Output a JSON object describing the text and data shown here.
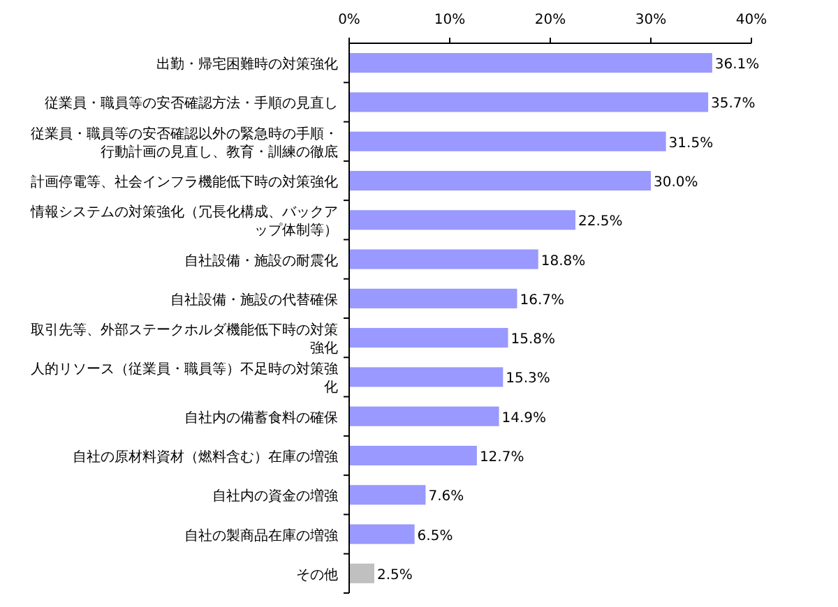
{
  "chart_data": {
    "type": "bar",
    "orientation": "horizontal",
    "categories": [
      "出勤・帰宅困難時の対策強化",
      "従業員・職員等の安否確認方法・手順の見直し",
      "従業員・職員等の安否確認以外の緊急時の手順・行動計画の見直し、教育・訓練の徹底",
      "計画停電等、社会インフラ機能低下時の対策強化",
      "情報システムの対策強化（冗長化構成、バックアップ体制等）",
      "自社設備・施設の耐震化",
      "自社設備・施設の代替確保",
      "取引先等、外部ステークホルダ機能低下時の対策強化",
      "人的リソース（従業員・職員等）不足時の対策強化",
      "自社内の備蓄食料の確保",
      "自社の原材料資材（燃料含む）在庫の増強",
      "自社内の資金の増強",
      "自社の製商品在庫の増強",
      "その他"
    ],
    "values": [
      36.1,
      35.7,
      31.5,
      30.0,
      22.5,
      18.8,
      16.7,
      15.8,
      15.3,
      14.9,
      12.7,
      7.6,
      6.5,
      2.5
    ],
    "value_labels": [
      "36.1%",
      "35.7%",
      "31.5%",
      "30.0%",
      "22.5%",
      "18.8%",
      "16.7%",
      "15.8%",
      "15.3%",
      "14.9%",
      "12.7%",
      "7.6%",
      "6.5%",
      "2.5%"
    ],
    "colors": [
      "#9999ff",
      "#9999ff",
      "#9999ff",
      "#9999ff",
      "#9999ff",
      "#9999ff",
      "#9999ff",
      "#9999ff",
      "#9999ff",
      "#9999ff",
      "#9999ff",
      "#9999ff",
      "#9999ff",
      "#c0c0c0"
    ],
    "xlim": [
      0,
      40
    ],
    "xticks": [
      {
        "value": 0,
        "label": "0%"
      },
      {
        "value": 10,
        "label": "10%"
      },
      {
        "value": 20,
        "label": "20%"
      },
      {
        "value": 30,
        "label": "30%"
      },
      {
        "value": 40,
        "label": "40%"
      }
    ],
    "grid": false
  }
}
